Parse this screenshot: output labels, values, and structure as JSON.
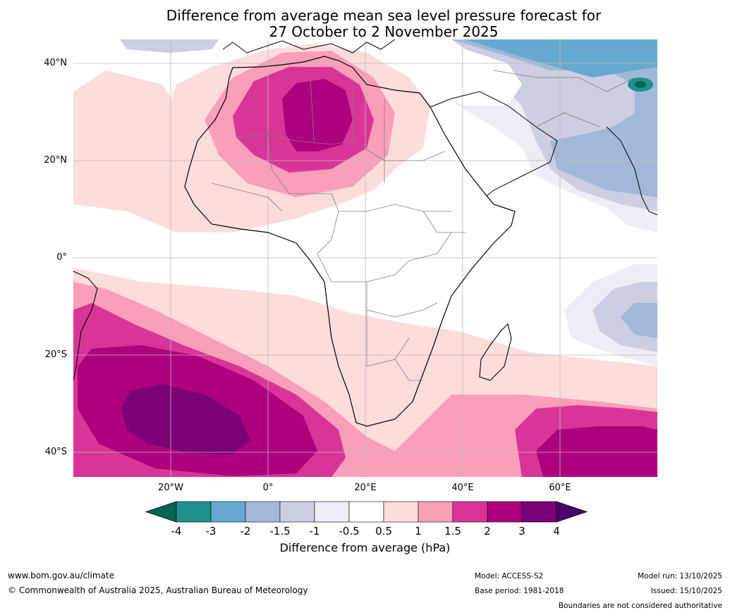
{
  "title": {
    "line1": "Difference from average mean sea level pressure forecast for",
    "line2": "27 October to 2 November 2025"
  },
  "lat_labels": [
    "40°N",
    "20°N",
    "0°",
    "20°S",
    "40°S"
  ],
  "lon_labels": [
    "20°W",
    "0°",
    "20°E",
    "40°E",
    "60°E"
  ],
  "colorbar": {
    "ticks": [
      "-4",
      "-3",
      "-2",
      "-1.5",
      "-1",
      "-0.5",
      "0.5",
      "1",
      "1.5",
      "2",
      "3",
      "4"
    ],
    "colors": [
      "#006655",
      "#1f8f8f",
      "#66a9d0",
      "#a2b8d8",
      "#cdcde4",
      "#f0ecf5",
      "#ffffff",
      "#fddcdc",
      "#f99fb9",
      "#d93599",
      "#ae017e",
      "#7a0177",
      "#49006a"
    ],
    "label": "Difference from average (hPa)"
  },
  "map": {
    "land_outline_color": "#000000",
    "border_color": "#808080",
    "grid_color": "#bbbbbb"
  },
  "footer": {
    "url": "www.bom.gov.au/climate",
    "copyright": "© Commonwealth of Australia 2025, Australian Bureau of Meteorology",
    "model": "Model: ACCESS-S2",
    "base_period": "Base period: 1981-2018",
    "model_run": "Model run: 13/10/2025",
    "issued": "Issued: 15/10/2025",
    "disclaimer": "Boundaries are not considered authoritative"
  }
}
